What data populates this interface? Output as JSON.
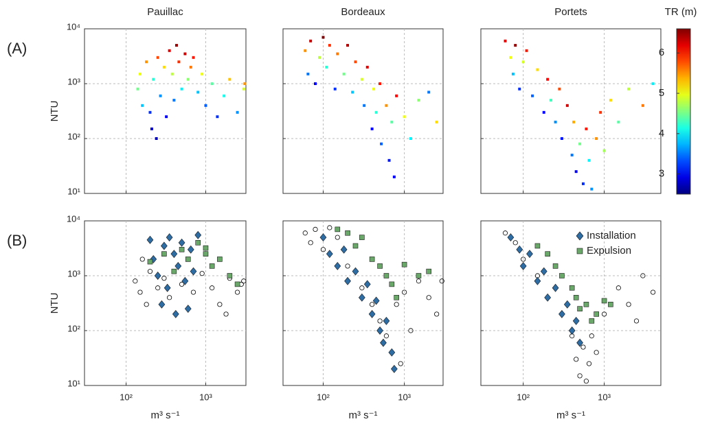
{
  "chart_data": [
    {
      "type": "scatter",
      "title": "Pauillac",
      "panel_label": "(A)",
      "ylabel": "NTU",
      "log_x": true,
      "log_y": true,
      "grid": true,
      "xlim": [
        30,
        3200
      ],
      "ylim": [
        10,
        10000
      ],
      "xticks": [
        100,
        1000
      ],
      "yticks": [
        {
          "value": 10,
          "label": "10¹"
        },
        {
          "value": 100,
          "label": "10²"
        },
        {
          "value": 1000,
          "label": "10³"
        },
        {
          "value": 10000,
          "label": "10⁴"
        }
      ],
      "x": [
        140,
        150,
        160,
        180,
        200,
        210,
        220,
        240,
        250,
        270,
        300,
        320,
        350,
        380,
        400,
        430,
        460,
        500,
        550,
        600,
        650,
        700,
        800,
        900,
        1000,
        1200,
        1400,
        1700,
        2000,
        2500,
        3000,
        3100
      ],
      "y": [
        800,
        1500,
        400,
        2500,
        300,
        150,
        1200,
        100,
        3000,
        600,
        2000,
        250,
        4000,
        1500,
        500,
        5000,
        2500,
        800,
        3500,
        1200,
        2000,
        3000,
        700,
        1500,
        400,
        1000,
        250,
        600,
        1200,
        300,
        800,
        1000
      ],
      "c": [
        4.5,
        5.0,
        3.8,
        5.5,
        3.2,
        2.8,
        4.2,
        2.7,
        5.8,
        3.6,
        5.2,
        3.0,
        6.2,
        4.8,
        3.5,
        6.5,
        5.9,
        4.0,
        6.3,
        4.6,
        5.6,
        6.0,
        3.8,
        5.0,
        3.4,
        4.4,
        3.2,
        4.1,
        5.3,
        3.6,
        4.9,
        5.5
      ]
    },
    {
      "type": "scatter",
      "title": "Bordeaux",
      "log_x": true,
      "log_y": true,
      "grid": true,
      "xlim": [
        32,
        3000
      ],
      "ylim": [
        10,
        10000
      ],
      "xticks": [
        100,
        1000
      ],
      "yticks": [
        10,
        100,
        1000,
        10000
      ],
      "x": [
        60,
        65,
        70,
        80,
        90,
        100,
        110,
        120,
        140,
        150,
        180,
        200,
        230,
        250,
        300,
        320,
        350,
        400,
        420,
        450,
        500,
        520,
        600,
        650,
        700,
        750,
        800,
        1000,
        1200,
        1500,
        2000,
        2500
      ],
      "y": [
        4000,
        1500,
        6000,
        1000,
        3000,
        7000,
        2000,
        5000,
        800,
        3500,
        1500,
        5000,
        700,
        2500,
        1200,
        400,
        2000,
        150,
        800,
        300,
        1000,
        80,
        400,
        40,
        200,
        20,
        600,
        250,
        100,
        500,
        700,
        200
      ],
      "c": [
        5.5,
        3.5,
        6.3,
        3.0,
        4.8,
        6.6,
        4.2,
        5.9,
        3.2,
        5.6,
        4.5,
        6.4,
        3.8,
        5.8,
        4.9,
        3.5,
        6.2,
        3.0,
        5.0,
        4.2,
        6.0,
        3.4,
        5.5,
        3.1,
        4.4,
        3.0,
        6.1,
        5.0,
        4.0,
        4.6,
        3.5,
        5.2
      ]
    },
    {
      "type": "scatter",
      "title": "Portets",
      "log_x": true,
      "log_y": true,
      "grid": true,
      "xlim": [
        30,
        5000
      ],
      "ylim": [
        10,
        10000
      ],
      "xticks": [
        100,
        1000
      ],
      "yticks": [
        10,
        100,
        1000,
        10000
      ],
      "x": [
        60,
        70,
        75,
        80,
        90,
        100,
        110,
        130,
        150,
        180,
        200,
        220,
        250,
        280,
        300,
        350,
        400,
        420,
        450,
        500,
        550,
        600,
        650,
        700,
        800,
        900,
        1000,
        1200,
        1500,
        2000,
        3000,
        4000
      ],
      "y": [
        6000,
        3000,
        1500,
        5000,
        800,
        2500,
        4000,
        600,
        1800,
        300,
        1200,
        500,
        200,
        800,
        100,
        400,
        50,
        200,
        25,
        80,
        15,
        150,
        40,
        12,
        100,
        300,
        60,
        500,
        200,
        800,
        400,
        1000
      ],
      "c": [
        6.2,
        5.0,
        3.8,
        6.5,
        3.2,
        4.9,
        6.0,
        3.4,
        5.2,
        3.0,
        6.1,
        4.3,
        3.6,
        5.8,
        3.1,
        6.3,
        3.5,
        5.4,
        3.0,
        4.5,
        3.2,
        6.0,
        4.0,
        3.6,
        5.5,
        5.9,
        4.7,
        5.2,
        4.4,
        4.8,
        5.6,
        4.0
      ]
    },
    {
      "type": "scatter",
      "panel_label": "(B)",
      "ylabel": "NTU",
      "xlabel": "m³ s⁻¹",
      "log_x": true,
      "log_y": true,
      "grid": true,
      "xlim": [
        30,
        3200
      ],
      "ylim": [
        10,
        10000
      ],
      "xticks": [
        {
          "value": 100,
          "label": "10²"
        },
        {
          "value": 1000,
          "label": "10³"
        }
      ],
      "yticks": [
        {
          "value": 10,
          "label": "10¹"
        },
        {
          "value": 100,
          "label": "10²"
        },
        {
          "value": 1000,
          "label": "10³"
        },
        {
          "value": 10000,
          "label": "10⁴"
        }
      ],
      "series": [
        {
          "marker": "circle",
          "color": "#000000",
          "filled": false,
          "x": [
            130,
            150,
            160,
            180,
            200,
            250,
            300,
            350,
            500,
            700,
            900,
            1200,
            1500,
            2000,
            2500,
            2800,
            3000,
            1800
          ],
          "y": [
            800,
            500,
            2000,
            300,
            1200,
            600,
            900,
            400,
            700,
            500,
            1100,
            600,
            300,
            900,
            500,
            700,
            800,
            200
          ]
        },
        {
          "name": "Installation",
          "marker": "diamond",
          "color": "#2e6da4",
          "filled": true,
          "x": [
            200,
            220,
            250,
            280,
            300,
            330,
            350,
            400,
            420,
            450,
            500,
            550,
            600,
            650,
            700,
            800
          ],
          "y": [
            4500,
            2000,
            1000,
            300,
            3500,
            600,
            5000,
            2500,
            200,
            1500,
            4000,
            800,
            250,
            3000,
            1200,
            5500
          ]
        },
        {
          "name": "Expulsion",
          "marker": "square",
          "color": "#6aa86a",
          "filled": true,
          "x": [
            200,
            300,
            400,
            500,
            600,
            800,
            1000,
            1200,
            1500,
            2000,
            2500,
            1000
          ],
          "y": [
            1800,
            2500,
            1200,
            3000,
            2000,
            4000,
            2500,
            1500,
            2000,
            1000,
            700,
            3200
          ]
        }
      ]
    },
    {
      "type": "scatter",
      "xlabel": "m³ s⁻¹",
      "log_x": true,
      "log_y": true,
      "grid": true,
      "xlim": [
        32,
        3000
      ],
      "ylim": [
        10,
        10000
      ],
      "yticks": [
        10,
        100,
        1000,
        10000
      ],
      "xticks": [
        {
          "value": 100,
          "label": "10²"
        },
        {
          "value": 1000,
          "label": "10³"
        }
      ],
      "series": [
        {
          "marker": "circle",
          "color": "#000000",
          "filled": false,
          "x": [
            60,
            70,
            80,
            100,
            120,
            150,
            200,
            300,
            400,
            500,
            600,
            700,
            800,
            900,
            1000,
            1500,
            2000,
            2900,
            2500,
            1200
          ],
          "y": [
            6000,
            4000,
            7000,
            3000,
            7500,
            5000,
            1500,
            600,
            300,
            150,
            80,
            40,
            300,
            25,
            500,
            800,
            400,
            800,
            200,
            100
          ]
        },
        {
          "name": "Installation",
          "marker": "diamond",
          "color": "#2e6da4",
          "filled": true,
          "x": [
            100,
            120,
            150,
            180,
            200,
            250,
            300,
            350,
            400,
            450,
            500,
            550,
            600,
            700,
            750
          ],
          "y": [
            5000,
            2500,
            1500,
            3000,
            800,
            1200,
            400,
            700,
            200,
            350,
            100,
            60,
            150,
            40,
            20
          ]
        },
        {
          "name": "Expulsion",
          "marker": "square",
          "color": "#6aa86a",
          "filled": true,
          "x": [
            150,
            200,
            250,
            300,
            400,
            500,
            600,
            700,
            800,
            1000,
            1500,
            2000
          ],
          "y": [
            7000,
            6000,
            3500,
            5000,
            2000,
            1500,
            1000,
            700,
            400,
            1600,
            1000,
            1200
          ]
        }
      ]
    },
    {
      "type": "scatter",
      "xlabel": "m³ s⁻¹",
      "log_x": true,
      "log_y": true,
      "grid": true,
      "legend": "upper right",
      "xlim": [
        30,
        5000
      ],
      "ylim": [
        10,
        10000
      ],
      "yticks": [
        10,
        100,
        1000,
        10000
      ],
      "xticks": [
        {
          "value": 100,
          "label": "10²"
        },
        {
          "value": 1000,
          "label": "10³"
        }
      ],
      "series": [
        {
          "marker": "circle",
          "color": "#000000",
          "filled": false,
          "x": [
            60,
            80,
            100,
            150,
            200,
            300,
            400,
            450,
            500,
            550,
            600,
            650,
            700,
            800,
            1000,
            1500,
            2000,
            3000,
            4000,
            2500
          ],
          "y": [
            6000,
            4000,
            2000,
            1000,
            400,
            200,
            80,
            30,
            15,
            50,
            12,
            25,
            80,
            40,
            200,
            600,
            300,
            1000,
            500,
            150
          ]
        },
        {
          "name": "Installation",
          "marker": "diamond",
          "color": "#2e6da4",
          "filled": true,
          "x": [
            70,
            90,
            100,
            120,
            150,
            180,
            200,
            250,
            300,
            350,
            400,
            450,
            500
          ],
          "y": [
            5000,
            3000,
            1500,
            2500,
            800,
            1200,
            400,
            600,
            200,
            300,
            100,
            150,
            60
          ]
        },
        {
          "name": "Expulsion",
          "marker": "square",
          "color": "#6aa86a",
          "filled": true,
          "x": [
            150,
            200,
            250,
            300,
            400,
            450,
            500,
            600,
            700,
            800,
            1000,
            1200
          ],
          "y": [
            3500,
            2500,
            1500,
            1000,
            600,
            400,
            250,
            300,
            150,
            200,
            350,
            300
          ]
        }
      ]
    }
  ],
  "colorbar": {
    "title": "TR (m)",
    "colormap": "jet",
    "clim": [
      2.5,
      6.6
    ],
    "ticks": [
      3,
      4,
      5,
      6
    ]
  }
}
